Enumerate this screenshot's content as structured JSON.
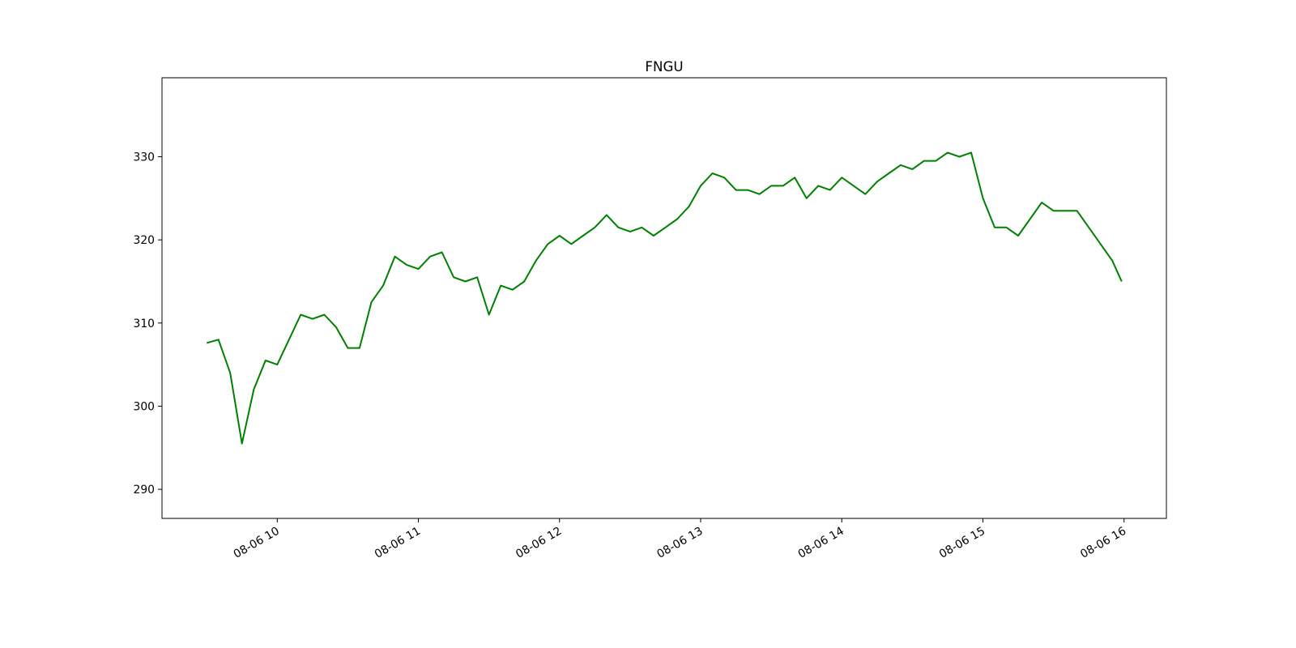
{
  "chart_data": {
    "type": "line",
    "title": "FNGU",
    "x": [
      "08-06 09:30",
      "08-06 09:35",
      "08-06 09:40",
      "08-06 09:45",
      "08-06 09:50",
      "08-06 09:55",
      "08-06 10:00",
      "08-06 10:05",
      "08-06 10:10",
      "08-06 10:15",
      "08-06 10:20",
      "08-06 10:25",
      "08-06 10:30",
      "08-06 10:35",
      "08-06 10:40",
      "08-06 10:45",
      "08-06 10:50",
      "08-06 10:55",
      "08-06 11:00",
      "08-06 11:05",
      "08-06 11:10",
      "08-06 11:15",
      "08-06 11:20",
      "08-06 11:25",
      "08-06 11:30",
      "08-06 11:35",
      "08-06 11:40",
      "08-06 11:45",
      "08-06 11:50",
      "08-06 11:55",
      "08-06 12:00",
      "08-06 12:05",
      "08-06 12:10",
      "08-06 12:15",
      "08-06 12:20",
      "08-06 12:25",
      "08-06 12:30",
      "08-06 12:35",
      "08-06 12:40",
      "08-06 12:45",
      "08-06 12:50",
      "08-06 12:55",
      "08-06 13:00",
      "08-06 13:05",
      "08-06 13:10",
      "08-06 13:15",
      "08-06 13:20",
      "08-06 13:25",
      "08-06 13:30",
      "08-06 13:35",
      "08-06 13:40",
      "08-06 13:45",
      "08-06 13:50",
      "08-06 13:55",
      "08-06 14:00",
      "08-06 14:05",
      "08-06 14:10",
      "08-06 14:15",
      "08-06 14:20",
      "08-06 14:25",
      "08-06 14:30",
      "08-06 14:35",
      "08-06 14:40",
      "08-06 14:45",
      "08-06 14:50",
      "08-06 14:55",
      "08-06 15:00",
      "08-06 15:05",
      "08-06 15:10",
      "08-06 15:15",
      "08-06 15:20",
      "08-06 15:25",
      "08-06 15:30",
      "08-06 15:35",
      "08-06 15:40",
      "08-06 15:45",
      "08-06 15:50",
      "08-06 15:55",
      "08-06 15:59"
    ],
    "series": [
      {
        "name": "FNGU",
        "color": "#008000",
        "values": [
          307.6,
          308,
          304,
          295.5,
          302,
          305.5,
          305,
          308,
          311,
          310.5,
          311,
          309.5,
          307,
          307,
          312.5,
          314.5,
          318,
          317,
          316.5,
          318,
          318.5,
          315.5,
          315,
          315.5,
          311,
          314.5,
          314,
          315,
          317.5,
          319.5,
          320.5,
          319.5,
          320.5,
          321.5,
          323,
          321.5,
          321,
          321.5,
          320.5,
          321.5,
          322.5,
          324,
          326.5,
          328,
          327.5,
          326,
          326,
          325.5,
          326.5,
          326.5,
          327.5,
          325,
          326.5,
          326,
          327.5,
          326.5,
          325.5,
          327,
          328,
          329,
          328.5,
          329.5,
          329.5,
          330.5,
          330,
          330.5,
          325,
          321.5,
          321.5,
          320.5,
          322.5,
          324.5,
          323.5,
          323.5,
          323.5,
          321.5,
          319.5,
          317.5,
          315
        ]
      }
    ],
    "xlim": [
      "08-06 09:11",
      "08-06 16:18"
    ],
    "xticks": [
      {
        "value": "08-06 10:00",
        "label": "08-06 10"
      },
      {
        "value": "08-06 11:00",
        "label": "08-06 11"
      },
      {
        "value": "08-06 12:00",
        "label": "08-06 12"
      },
      {
        "value": "08-06 13:00",
        "label": "08-06 13"
      },
      {
        "value": "08-06 14:00",
        "label": "08-06 14"
      },
      {
        "value": "08-06 15:00",
        "label": "08-06 15"
      },
      {
        "value": "08-06 16:00",
        "label": "08-06 16"
      }
    ],
    "ylim": [
      286.5,
      339.5
    ],
    "yticks": [
      290,
      300,
      310,
      320,
      330
    ]
  }
}
